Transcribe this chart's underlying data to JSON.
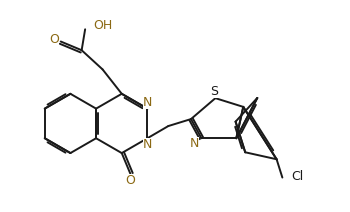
{
  "bg_color": "#ffffff",
  "line_color": "#1a1a1a",
  "heteroatom_color": "#8B4513",
  "N_color": "#8B6914",
  "S_color": "#1a1a1a",
  "Cl_color": "#1a1a1a",
  "linewidth": 1.4,
  "figsize": [
    3.5,
    2.12
  ],
  "dpi": 100,
  "xlim": [
    0,
    10
  ],
  "ylim": [
    0,
    6
  ]
}
